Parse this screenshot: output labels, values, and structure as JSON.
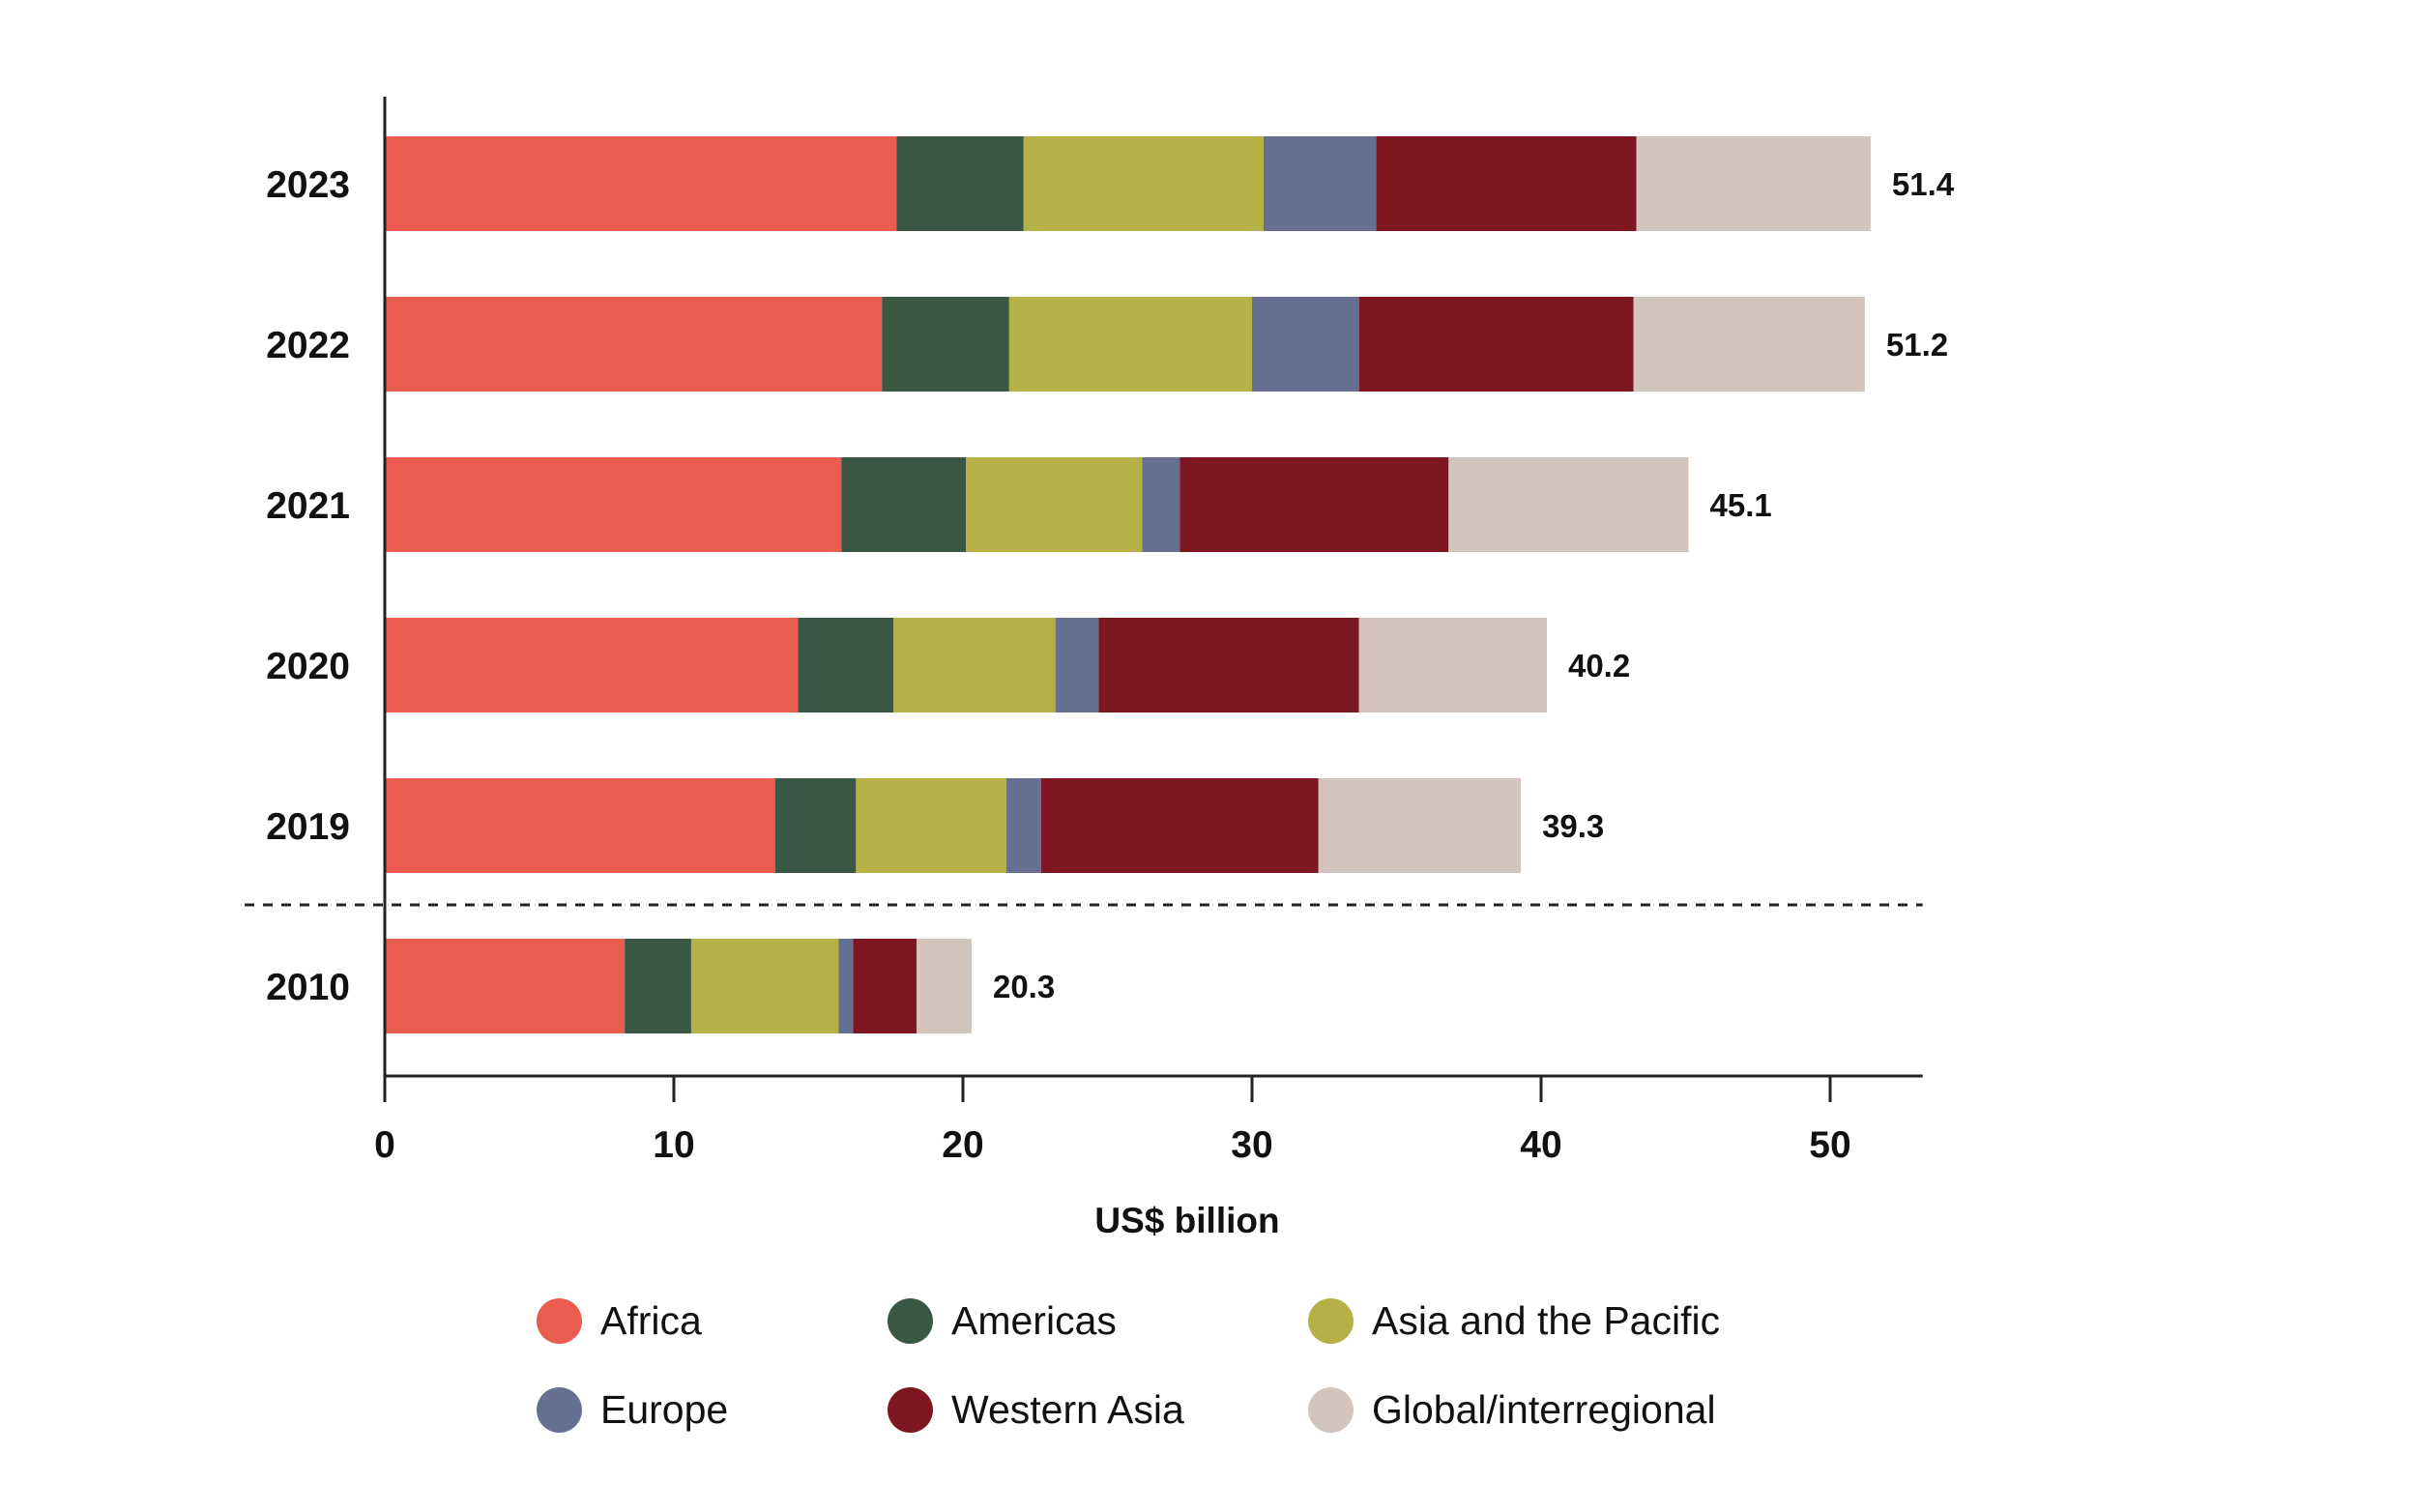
{
  "chart_data": {
    "type": "bar",
    "orientation": "horizontal",
    "stacked": true,
    "title": "",
    "xlabel": "US$ billion",
    "ylabel": "",
    "xlim": [
      0,
      53.2
    ],
    "xticks": [
      0,
      10,
      20,
      30,
      40,
      50
    ],
    "grid": false,
    "legend_position": "bottom",
    "categories": [
      "2023",
      "2022",
      "2021",
      "2020",
      "2019",
      "2010"
    ],
    "separator_after_category": "2019",
    "totals": [
      "51.4",
      "51.2",
      "45.1",
      "40.2",
      "39.3",
      "20.3"
    ],
    "series": [
      {
        "name": "Africa",
        "color": "#E95C4F",
        "values": [
          17.7,
          17.2,
          15.8,
          14.3,
          13.5,
          8.3
        ]
      },
      {
        "name": "Americas",
        "color": "#3A5744",
        "values": [
          4.4,
          4.4,
          4.3,
          3.3,
          2.8,
          2.3
        ]
      },
      {
        "name": "Asia and the Pacific",
        "color": "#B5B147",
        "values": [
          8.3,
          8.4,
          6.1,
          5.6,
          5.2,
          5.1
        ]
      },
      {
        "name": "Europe",
        "color": "#667092",
        "values": [
          3.9,
          3.7,
          1.3,
          1.5,
          1.2,
          0.5
        ]
      },
      {
        "name": "Western Asia",
        "color": "#7E1721",
        "values": [
          9.0,
          9.5,
          9.3,
          9.0,
          9.6,
          2.2
        ]
      },
      {
        "name": "Global/interregional",
        "color": "#D3C5BB",
        "values": [
          8.1,
          8.0,
          8.3,
          6.5,
          7.0,
          1.9
        ]
      }
    ]
  }
}
